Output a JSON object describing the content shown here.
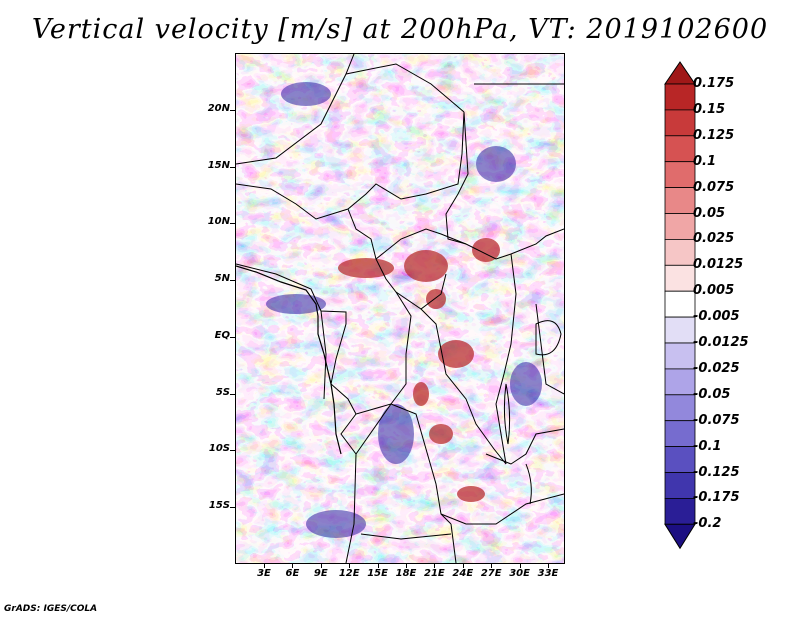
{
  "title": "Vertical velocity [m/s] at 200hPa, VT: 2019102600",
  "credit": "GrADS: IGES/COLA",
  "lat_ticks": [
    "20N",
    "15N",
    "10N",
    "5N",
    "EQ",
    "5S",
    "10S",
    "15S"
  ],
  "lon_ticks": [
    "3E",
    "6E",
    "9E",
    "12E",
    "15E",
    "18E",
    "21E",
    "24E",
    "27E",
    "30E",
    "33E"
  ],
  "colorbar": {
    "labels": [
      "0.175",
      "0.15",
      "0.125",
      "0.1",
      "0.075",
      "0.05",
      "0.025",
      "0.0125",
      "0.005",
      "-0.005",
      "-0.0125",
      "-0.025",
      "-0.05",
      "-0.075",
      "-0.1",
      "-0.125",
      "-0.175",
      "-0.2"
    ],
    "colors": [
      "#a01818",
      "#b82626",
      "#c83a3a",
      "#d65252",
      "#e06c6c",
      "#e88888",
      "#f0a6a6",
      "#f6c6c6",
      "#fbe2e2",
      "#ffffff",
      "#e2def6",
      "#c8c0f0",
      "#aea4e8",
      "#9288dc",
      "#766ccf",
      "#5a50c0",
      "#4036ad",
      "#2a1e96",
      "#1c0f82"
    ]
  }
}
